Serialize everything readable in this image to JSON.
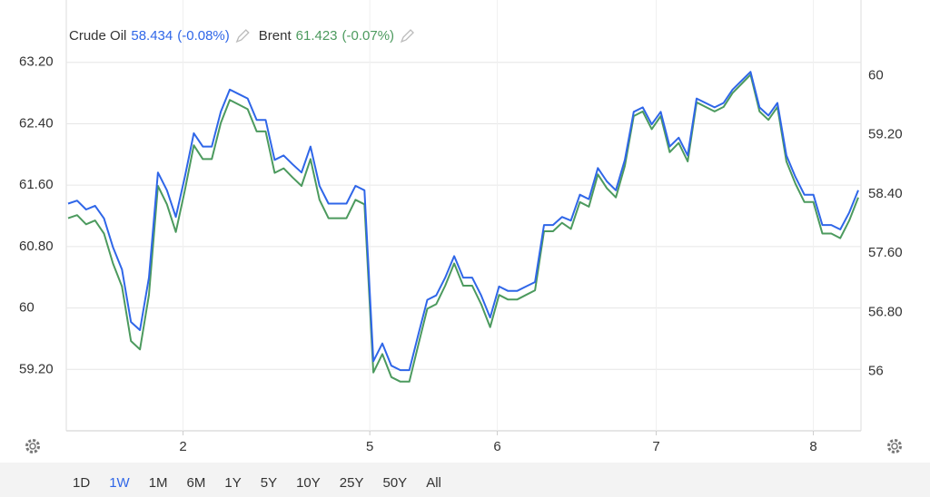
{
  "chart_data": {
    "type": "line",
    "series": [
      {
        "name": "Crude Oil",
        "last": 58.434,
        "change": "(-0.08%)",
        "color": "#2f66e8",
        "axis": "y2",
        "values": [
          58.27,
          58.31,
          58.19,
          58.24,
          58.07,
          57.68,
          57.38,
          56.67,
          56.56,
          57.27,
          58.69,
          58.45,
          58.09,
          58.63,
          59.22,
          59.04,
          59.04,
          59.51,
          59.81,
          59.75,
          59.69,
          59.4,
          59.4,
          58.86,
          58.92,
          58.8,
          58.69,
          59.04,
          58.51,
          58.27,
          58.27,
          58.27,
          58.51,
          58.45,
          56.14,
          56.38,
          56.08,
          56.02,
          56.02,
          56.5,
          56.97,
          57.03,
          57.27,
          57.56,
          57.27,
          57.27,
          57.03,
          56.73,
          57.15,
          57.09,
          57.09,
          57.15,
          57.21,
          57.98,
          57.98,
          58.09,
          58.04,
          58.39,
          58.33,
          58.75,
          58.57,
          58.45,
          58.86,
          59.51,
          59.57,
          59.34,
          59.51,
          59.04,
          59.16,
          58.92,
          59.69,
          59.63,
          59.57,
          59.63,
          59.81,
          59.93,
          60.05,
          59.57,
          59.46,
          59.63,
          58.92,
          58.63,
          58.39,
          58.39,
          57.98,
          57.98,
          57.92,
          58.15,
          58.45
        ]
      },
      {
        "name": "Brent",
        "last": 61.423,
        "change": "(-0.07%)",
        "color": "#4c9a5e",
        "axis": "y",
        "values": [
          61.17,
          61.21,
          61.09,
          61.14,
          60.97,
          60.58,
          60.28,
          59.57,
          59.46,
          60.17,
          61.59,
          61.35,
          60.99,
          61.53,
          62.12,
          61.94,
          61.94,
          62.41,
          62.71,
          62.65,
          62.59,
          62.3,
          62.3,
          61.76,
          61.82,
          61.7,
          61.59,
          61.94,
          61.41,
          61.17,
          61.17,
          61.17,
          61.41,
          61.35,
          59.16,
          59.4,
          59.1,
          59.04,
          59.04,
          59.52,
          59.99,
          60.05,
          60.29,
          60.58,
          60.29,
          60.29,
          60.05,
          59.75,
          60.17,
          60.11,
          60.11,
          60.17,
          60.23,
          61.0,
          61.0,
          61.11,
          61.03,
          61.38,
          61.32,
          61.74,
          61.56,
          61.44,
          61.85,
          62.5,
          62.56,
          62.33,
          62.5,
          62.03,
          62.15,
          61.91,
          62.68,
          62.62,
          62.56,
          62.62,
          62.8,
          62.92,
          63.04,
          62.56,
          62.45,
          62.62,
          61.91,
          61.62,
          61.38,
          61.38,
          60.97,
          60.97,
          60.91,
          61.14,
          61.44
        ]
      }
    ],
    "xlim": [
      0,
      88
    ],
    "xticks": [
      {
        "value": 12.8,
        "label": "2"
      },
      {
        "value": 33.6,
        "label": "5"
      },
      {
        "value": 47.8,
        "label": "6"
      },
      {
        "value": 65.5,
        "label": "7"
      },
      {
        "value": 83,
        "label": "8"
      }
    ],
    "ylim": [
      58.4,
      63.8
    ],
    "yticks": [
      {
        "value": 59.2,
        "label": "59.20"
      },
      60,
      {
        "value": 60.8,
        "label": "60.80"
      },
      {
        "value": 61.6,
        "label": "61.60"
      },
      {
        "value": 62.4,
        "label": "62.40"
      },
      {
        "value": 63.2,
        "label": "63.20"
      }
    ],
    "y2lim": [
      55.2,
      60.8
    ],
    "y2ticks": [
      56,
      {
        "value": 56.8,
        "label": "56.80"
      },
      {
        "value": 57.6,
        "label": "57.60"
      },
      {
        "value": 58.4,
        "label": "58.40"
      },
      {
        "value": 59.2,
        "label": "59.20"
      },
      60
    ],
    "grid": true,
    "ranges": [
      "1D",
      "1W",
      "1M",
      "6M",
      "1Y",
      "5Y",
      "10Y",
      "25Y",
      "50Y",
      "All"
    ],
    "selected_range": "1W"
  }
}
